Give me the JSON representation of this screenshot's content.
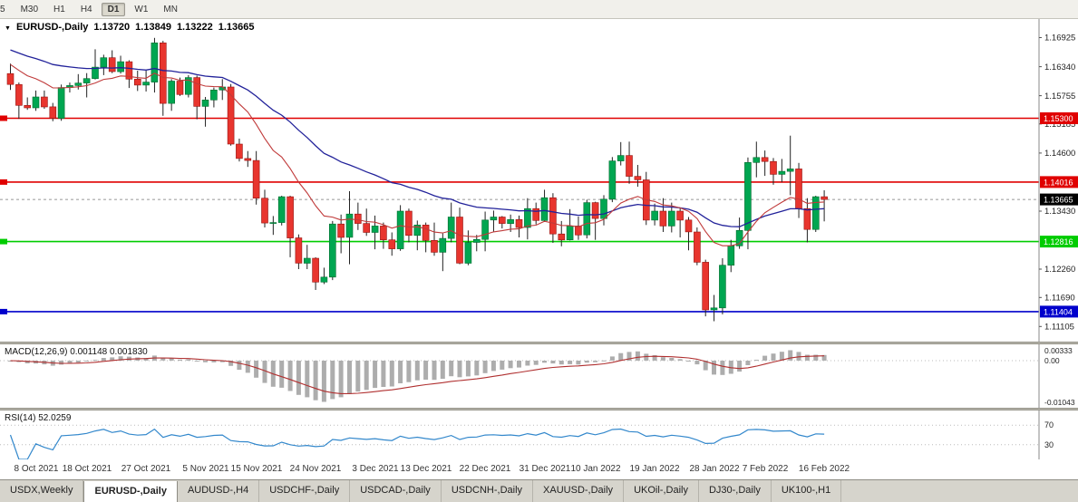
{
  "toolbar": {
    "timeframes": [
      {
        "label": "5",
        "active": false
      },
      {
        "label": "M30",
        "active": false
      },
      {
        "label": "H1",
        "active": false
      },
      {
        "label": "H4",
        "active": false
      },
      {
        "label": "D1",
        "active": true
      },
      {
        "label": "W1",
        "active": false
      },
      {
        "label": "MN",
        "active": false
      }
    ]
  },
  "chart": {
    "title": {
      "symbol": "EURUSD-,Daily",
      "open": "1.13720",
      "high": "1.13849",
      "low": "1.13222",
      "close": "1.13665"
    },
    "price_axis": {
      "range": [
        1.108,
        1.173
      ],
      "labels": [
        {
          "text": "1.16925",
          "value": 1.16925
        },
        {
          "text": "1.16340",
          "value": 1.1634
        },
        {
          "text": "1.15755",
          "value": 1.15755
        },
        {
          "text": "1.15185",
          "value": 1.15185
        },
        {
          "text": "1.14600",
          "value": 1.146
        },
        {
          "text": "1.13430",
          "value": 1.1343
        },
        {
          "text": "1.12260",
          "value": 1.1226
        },
        {
          "text": "1.11690",
          "value": 1.1169
        },
        {
          "text": "1.11105",
          "value": 1.11105
        }
      ]
    },
    "hlines": [
      {
        "label": "1.15300",
        "value": 1.153,
        "color": "#e00000",
        "text_color": "#ffffff"
      },
      {
        "label": "1.14016",
        "value": 1.14016,
        "color": "#e00000",
        "text_color": "#ffffff"
      },
      {
        "label": "1.12816",
        "value": 1.12816,
        "color": "#00cc00",
        "text_color": "#ffffff"
      },
      {
        "label": "1.11404",
        "value": 1.11404,
        "color": "#0000cc",
        "text_color": "#ffffff"
      }
    ],
    "current_price": {
      "label": "1.13665",
      "value": 1.13665,
      "color": "#000000",
      "text_color": "#ffffff"
    },
    "colors": {
      "up": "#00a651",
      "down": "#e8352e",
      "wick": "#222222",
      "ma_fast": "#c03a3a",
      "ma_slow": "#22229a"
    }
  },
  "macd": {
    "label": "MACD(12,26,9) 0.001148 0.001830",
    "histogram_color": "#adadad",
    "signal_color": "#b03030",
    "axis_labels": [
      {
        "text": "0.00333",
        "pos": "max"
      },
      {
        "text": "0.00",
        "pos": "zero"
      },
      {
        "text": "-0.01043",
        "pos": "min"
      }
    ]
  },
  "rsi": {
    "label": "RSI(14) 52.0259",
    "line_color": "#3388cc",
    "levels": [
      {
        "text": "70",
        "value": 70
      },
      {
        "text": "30",
        "value": 30
      }
    ]
  },
  "x_axis": [
    {
      "text": "8 Oct 2021",
      "index": 3
    },
    {
      "text": "18 Oct 2021",
      "index": 9
    },
    {
      "text": "27 Oct 2021",
      "index": 16
    },
    {
      "text": "5 Nov 2021",
      "index": 23
    },
    {
      "text": "15 Nov 2021",
      "index": 29
    },
    {
      "text": "24 Nov 2021",
      "index": 36
    },
    {
      "text": "3 Dec 2021",
      "index": 43
    },
    {
      "text": "13 Dec 2021",
      "index": 49
    },
    {
      "text": "22 Dec 2021",
      "index": 56
    },
    {
      "text": "31 Dec 2021",
      "index": 63
    },
    {
      "text": "10 Jan 2022",
      "index": 69
    },
    {
      "text": "19 Jan 2022",
      "index": 76
    },
    {
      "text": "28 Jan 2022",
      "index": 83
    },
    {
      "text": "7 Feb 2022",
      "index": 89
    },
    {
      "text": "16 Feb 2022",
      "index": 96
    }
  ],
  "tabs": [
    {
      "label": "USDX,Weekly",
      "active": false
    },
    {
      "label": "EURUSD-,Daily",
      "active": true
    },
    {
      "label": "AUDUSD-,H4",
      "active": false
    },
    {
      "label": "USDCHF-,Daily",
      "active": false
    },
    {
      "label": "USDCAD-,Daily",
      "active": false
    },
    {
      "label": "USDCNH-,Daily",
      "active": false
    },
    {
      "label": "XAUUSD-,Daily",
      "active": false
    },
    {
      "label": "UKOil-,Daily",
      "active": false
    },
    {
      "label": "DJ30-,Daily",
      "active": false
    },
    {
      "label": "UK100-,H1",
      "active": false
    }
  ],
  "chart_data": {
    "type": "candlestick",
    "symbol": "EURUSD-,Daily",
    "note": "daily candles, 5 Oct 2021 - 16 Feb 2022, values [open,high,low,close]",
    "ohlc": [
      [
        1.162,
        1.164,
        1.1587,
        1.1598
      ],
      [
        1.1598,
        1.1602,
        1.1529,
        1.1556
      ],
      [
        1.1556,
        1.1572,
        1.1547,
        1.1551
      ],
      [
        1.1551,
        1.1586,
        1.1545,
        1.1573
      ],
      [
        1.1573,
        1.1586,
        1.1549,
        1.1553
      ],
      [
        1.1553,
        1.1561,
        1.1524,
        1.153
      ],
      [
        1.153,
        1.1598,
        1.1525,
        1.1592
      ],
      [
        1.1592,
        1.1602,
        1.1582,
        1.1596
      ],
      [
        1.1596,
        1.1619,
        1.1588,
        1.1601
      ],
      [
        1.1601,
        1.1621,
        1.1572,
        1.161
      ],
      [
        1.161,
        1.1669,
        1.1608,
        1.1633
      ],
      [
        1.1633,
        1.1658,
        1.1617,
        1.1652
      ],
      [
        1.1652,
        1.1667,
        1.1621,
        1.1624
      ],
      [
        1.1624,
        1.1656,
        1.162,
        1.1644
      ],
      [
        1.1644,
        1.1647,
        1.1591,
        1.1609
      ],
      [
        1.1609,
        1.1626,
        1.1585,
        1.1597
      ],
      [
        1.1597,
        1.1626,
        1.1584,
        1.1603
      ],
      [
        1.1603,
        1.1692,
        1.1582,
        1.1682
      ],
      [
        1.1682,
        1.1686,
        1.1535,
        1.156
      ],
      [
        1.156,
        1.1609,
        1.1545,
        1.1605
      ],
      [
        1.1605,
        1.1612,
        1.1575,
        1.1578
      ],
      [
        1.1578,
        1.1617,
        1.1572,
        1.1612
      ],
      [
        1.1612,
        1.1616,
        1.1528,
        1.1554
      ],
      [
        1.1554,
        1.1573,
        1.1513,
        1.1567
      ],
      [
        1.1567,
        1.1592,
        1.1552,
        1.1587
      ],
      [
        1.1587,
        1.1609,
        1.1567,
        1.1593
      ],
      [
        1.1593,
        1.1599,
        1.1475,
        1.1478
      ],
      [
        1.1478,
        1.1489,
        1.1443,
        1.1449
      ],
      [
        1.1449,
        1.1464,
        1.1432,
        1.1445
      ],
      [
        1.1445,
        1.1464,
        1.1356,
        1.1369
      ],
      [
        1.1369,
        1.1386,
        1.131,
        1.1319
      ],
      [
        1.1319,
        1.1333,
        1.1295,
        1.132
      ],
      [
        1.132,
        1.1374,
        1.1314,
        1.1372
      ],
      [
        1.1372,
        1.1374,
        1.125,
        1.1289
      ],
      [
        1.1289,
        1.1296,
        1.1226,
        1.1238
      ],
      [
        1.1238,
        1.1275,
        1.1226,
        1.1248
      ],
      [
        1.1248,
        1.125,
        1.1184,
        1.12
      ],
      [
        1.12,
        1.1229,
        1.1196,
        1.121
      ],
      [
        1.121,
        1.1323,
        1.1204,
        1.1317
      ],
      [
        1.1317,
        1.1336,
        1.1258,
        1.129
      ],
      [
        1.129,
        1.1383,
        1.1236,
        1.1337
      ],
      [
        1.1337,
        1.136,
        1.1305,
        1.1318
      ],
      [
        1.1318,
        1.1348,
        1.1293,
        1.13
      ],
      [
        1.13,
        1.1334,
        1.1266,
        1.1313
      ],
      [
        1.1313,
        1.132,
        1.1267,
        1.1285
      ],
      [
        1.1285,
        1.13,
        1.1253,
        1.1267
      ],
      [
        1.1267,
        1.1355,
        1.1263,
        1.1343
      ],
      [
        1.1343,
        1.1348,
        1.128,
        1.1294
      ],
      [
        1.1294,
        1.1324,
        1.1264,
        1.1315
      ],
      [
        1.1315,
        1.132,
        1.126,
        1.1284
      ],
      [
        1.1284,
        1.132,
        1.1253,
        1.126
      ],
      [
        1.126,
        1.1298,
        1.1222,
        1.1288
      ],
      [
        1.1288,
        1.136,
        1.128,
        1.1331
      ],
      [
        1.1331,
        1.135,
        1.1236,
        1.1238
      ],
      [
        1.1238,
        1.1304,
        1.1234,
        1.128
      ],
      [
        1.128,
        1.1295,
        1.1262,
        1.1286
      ],
      [
        1.1286,
        1.1342,
        1.1262,
        1.1325
      ],
      [
        1.1325,
        1.1344,
        1.1301,
        1.1331
      ],
      [
        1.1331,
        1.1333,
        1.1308,
        1.1318
      ],
      [
        1.1318,
        1.1336,
        1.1301,
        1.1326
      ],
      [
        1.1326,
        1.1334,
        1.129,
        1.131
      ],
      [
        1.131,
        1.1369,
        1.1286,
        1.1348
      ],
      [
        1.1348,
        1.136,
        1.1316,
        1.1324
      ],
      [
        1.1324,
        1.1386,
        1.1321,
        1.137
      ],
      [
        1.137,
        1.1379,
        1.1279,
        1.1297
      ],
      [
        1.1297,
        1.1323,
        1.1272,
        1.1285
      ],
      [
        1.1285,
        1.1347,
        1.1284,
        1.1313
      ],
      [
        1.1313,
        1.1332,
        1.1285,
        1.1295
      ],
      [
        1.1295,
        1.1366,
        1.1288,
        1.136
      ],
      [
        1.136,
        1.1362,
        1.1285,
        1.1328
      ],
      [
        1.1328,
        1.1375,
        1.1314,
        1.1367
      ],
      [
        1.1367,
        1.1452,
        1.1361,
        1.1444
      ],
      [
        1.1444,
        1.1482,
        1.1435,
        1.1455
      ],
      [
        1.1455,
        1.1483,
        1.1398,
        1.1413
      ],
      [
        1.1413,
        1.1436,
        1.1392,
        1.1406
      ],
      [
        1.1406,
        1.1422,
        1.1315,
        1.1325
      ],
      [
        1.1325,
        1.1358,
        1.1314,
        1.1343
      ],
      [
        1.1343,
        1.1369,
        1.1301,
        1.1313
      ],
      [
        1.1313,
        1.136,
        1.13,
        1.1343
      ],
      [
        1.1343,
        1.1349,
        1.129,
        1.1325
      ],
      [
        1.1325,
        1.1331,
        1.1264,
        1.1301
      ],
      [
        1.1301,
        1.131,
        1.1234,
        1.124
      ],
      [
        1.124,
        1.1245,
        1.1131,
        1.1144
      ],
      [
        1.1144,
        1.1174,
        1.1121,
        1.1148
      ],
      [
        1.1148,
        1.1248,
        1.1135,
        1.1234
      ],
      [
        1.1234,
        1.1285,
        1.122,
        1.1273
      ],
      [
        1.1273,
        1.133,
        1.1267,
        1.1304
      ],
      [
        1.1304,
        1.1451,
        1.1266,
        1.1441
      ],
      [
        1.1441,
        1.1483,
        1.1411,
        1.1451
      ],
      [
        1.1451,
        1.1465,
        1.1414,
        1.1443
      ],
      [
        1.1443,
        1.145,
        1.1396,
        1.1417
      ],
      [
        1.1417,
        1.1448,
        1.1401,
        1.1423
      ],
      [
        1.1423,
        1.1495,
        1.1375,
        1.1428
      ],
      [
        1.1428,
        1.144,
        1.1329,
        1.1348
      ],
      [
        1.1348,
        1.1369,
        1.128,
        1.1306
      ],
      [
        1.1306,
        1.1374,
        1.1301,
        1.1372
      ],
      [
        1.1372,
        1.13849,
        1.13222,
        1.13665
      ]
    ],
    "overlays": [
      {
        "name": "ma-fast",
        "type": "ema",
        "color": "#c03a3a"
      },
      {
        "name": "ma-slow",
        "type": "ema",
        "color": "#22229a"
      }
    ],
    "horizontal_lines": [
      1.153,
      1.14016,
      1.12816,
      1.11404
    ],
    "sub_indicators": [
      "MACD(12,26,9)",
      "RSI(14)"
    ]
  }
}
